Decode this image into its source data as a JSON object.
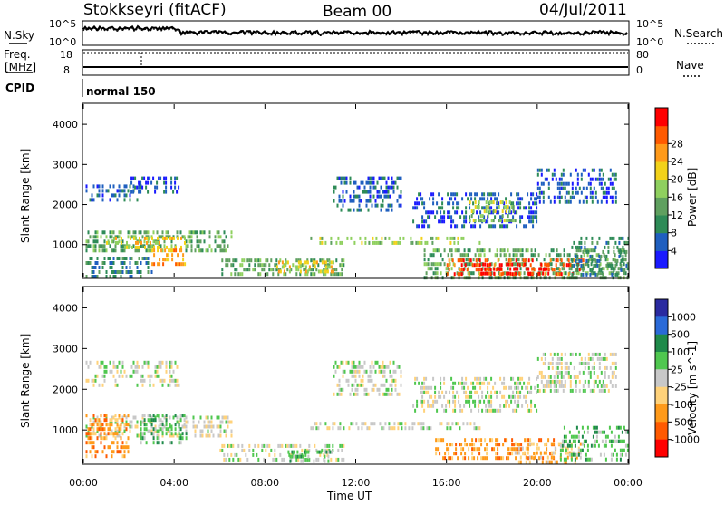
{
  "header": {
    "title": "Stokkseyri (fitACF)",
    "beam": "Beam 00",
    "date": "04/Jul/2011"
  },
  "panel_top": {
    "left_label": "N.Sky",
    "right_label": "N.Search",
    "left_ticks": [
      "10^5",
      "10^0"
    ],
    "right_ticks": [
      "10^5",
      "10^0"
    ]
  },
  "panel_freq": {
    "left_label_1": "Freq.",
    "left_label_2": "[MHz]",
    "right_label": "Nave",
    "left_ticks": [
      "18",
      "8"
    ],
    "right_ticks": [
      "80",
      "0"
    ]
  },
  "panel_cpid": {
    "label": "CPID",
    "program": "normal 150"
  },
  "colors": {
    "power": [
      "#1a1aff",
      "#1f5fbf",
      "#2e8b57",
      "#5fa05f",
      "#8fd05f",
      "#f2d21a",
      "#ff9a1a",
      "#ff5a00",
      "#ff0000"
    ],
    "velocity": [
      "#2a2aa0",
      "#2a6ad8",
      "#1f8a4a",
      "#4fc74f",
      "#c8c8c8",
      "#ffd27a",
      "#ff9a1a",
      "#ff5a00",
      "#ff0000"
    ]
  },
  "chart_data": [
    {
      "type": "heatmap",
      "title": "",
      "xlabel": "Time UT",
      "ylabel": "Slant Range [km]",
      "colorbar_label": "Power [dB]",
      "colorbar_ticks": [
        "4",
        "8",
        "12",
        "16",
        "20",
        "24",
        "28"
      ],
      "x_ticks": [
        "00:00",
        "04:00",
        "08:00",
        "12:00",
        "16:00",
        "20:00",
        "00:00"
      ],
      "y_ticks": [
        "1000",
        "2000",
        "3000",
        "4000"
      ],
      "xlim": [
        0,
        24
      ],
      "ylim": [
        180,
        4500
      ],
      "regions": [
        {
          "t0": 0.1,
          "t1": 2.5,
          "r0": 2100,
          "r1": 2500,
          "level": 1
        },
        {
          "t0": 2.0,
          "t1": 4.2,
          "r0": 2300,
          "r1": 2700,
          "level": 1
        },
        {
          "t0": 0.1,
          "t1": 6.5,
          "r0": 850,
          "r1": 1350,
          "level": 3
        },
        {
          "t0": 1.0,
          "t1": 4.5,
          "r0": 900,
          "r1": 1200,
          "level": 5
        },
        {
          "t0": 3.0,
          "t1": 4.5,
          "r0": 500,
          "r1": 900,
          "level": 6
        },
        {
          "t0": 0.1,
          "t1": 3.0,
          "r0": 200,
          "r1": 700,
          "level": 2
        },
        {
          "t0": 6.0,
          "t1": 11.5,
          "r0": 250,
          "r1": 650,
          "level": 3
        },
        {
          "t0": 8.5,
          "t1": 11.0,
          "r0": 350,
          "r1": 600,
          "level": 5
        },
        {
          "t0": 10.0,
          "t1": 17.5,
          "r0": 1000,
          "r1": 1200,
          "level": 4
        },
        {
          "t0": 11.0,
          "t1": 14.0,
          "r0": 1900,
          "r1": 2700,
          "level": 1
        },
        {
          "t0": 14.5,
          "t1": 20.0,
          "r0": 1500,
          "r1": 2300,
          "level": 1
        },
        {
          "t0": 17.0,
          "t1": 19.0,
          "r0": 1600,
          "r1": 2100,
          "level": 4
        },
        {
          "t0": 20.0,
          "t1": 23.5,
          "r0": 2000,
          "r1": 2900,
          "level": 1
        },
        {
          "t0": 15.0,
          "t1": 24.0,
          "r0": 200,
          "r1": 900,
          "level": 3
        },
        {
          "t0": 16.0,
          "t1": 22.0,
          "r0": 250,
          "r1": 650,
          "level": 7
        },
        {
          "t0": 17.5,
          "t1": 20.5,
          "r0": 250,
          "r1": 550,
          "level": 8
        },
        {
          "t0": 21.5,
          "t1": 24.0,
          "r0": 200,
          "r1": 1200,
          "level": 2
        }
      ]
    },
    {
      "type": "heatmap",
      "title": "",
      "xlabel": "Time UT",
      "ylabel": "Slant Range [km]",
      "colorbar_label": "Velocity [m s^-1]",
      "colorbar_ticks": [
        "1000",
        "500",
        "100",
        "25",
        "-25",
        "-100",
        "-500",
        "-1000"
      ],
      "x_ticks": [
        "00:00",
        "04:00",
        "08:00",
        "12:00",
        "16:00",
        "20:00",
        "00:00"
      ],
      "y_ticks": [
        "1000",
        "2000",
        "3000",
        "4000"
      ],
      "xlim": [
        0,
        24
      ],
      "ylim": [
        180,
        4500
      ],
      "regions": [
        {
          "t0": 0.1,
          "t1": 4.2,
          "r0": 2100,
          "r1": 2700,
          "level": 4
        },
        {
          "t0": 0.1,
          "t1": 6.5,
          "r0": 850,
          "r1": 1350,
          "level": 4
        },
        {
          "t0": 2.5,
          "t1": 4.5,
          "r0": 700,
          "r1": 1400,
          "level": 3
        },
        {
          "t0": 0.1,
          "t1": 2.0,
          "r0": 300,
          "r1": 1400,
          "level": 6
        },
        {
          "t0": 6.0,
          "t1": 11.5,
          "r0": 250,
          "r1": 650,
          "level": 4
        },
        {
          "t0": 9.0,
          "t1": 11.0,
          "r0": 250,
          "r1": 500,
          "level": 3
        },
        {
          "t0": 10.0,
          "t1": 17.5,
          "r0": 1000,
          "r1": 1200,
          "level": 4
        },
        {
          "t0": 11.0,
          "t1": 14.0,
          "r0": 1900,
          "r1": 2700,
          "level": 4
        },
        {
          "t0": 14.5,
          "t1": 20.0,
          "r0": 1500,
          "r1": 2300,
          "level": 4
        },
        {
          "t0": 20.0,
          "t1": 23.5,
          "r0": 2000,
          "r1": 2900,
          "level": 4
        },
        {
          "t0": 15.5,
          "t1": 21.0,
          "r0": 250,
          "r1": 800,
          "level": 6
        },
        {
          "t0": 19.0,
          "t1": 22.0,
          "r0": 250,
          "r1": 700,
          "level": 5
        },
        {
          "t0": 21.0,
          "t1": 24.0,
          "r0": 250,
          "r1": 1100,
          "level": 3
        }
      ]
    }
  ]
}
